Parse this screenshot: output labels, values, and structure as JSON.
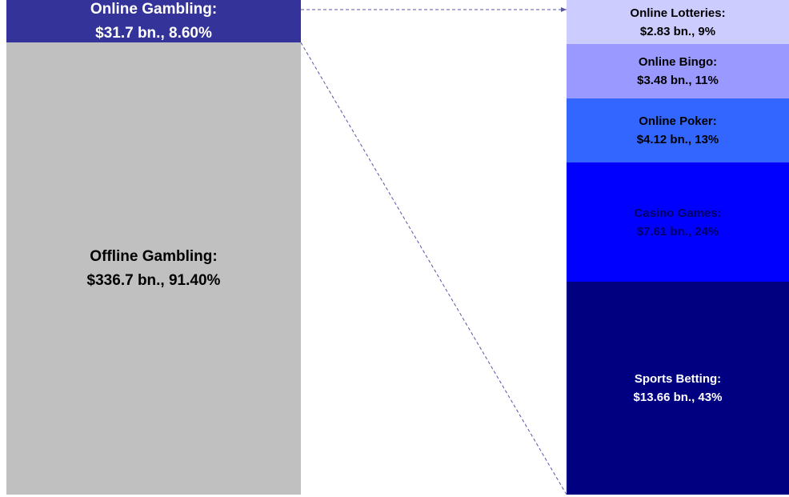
{
  "chart_data": {
    "type": "bar-of-bar",
    "bars": [
      {
        "segments": [
          {
            "name": "Offline Gambling:",
            "value": 336.7,
            "value_label": "$336.7 bn., 91.40%",
            "color": "#c0c0c0",
            "text_color": "#000000"
          },
          {
            "name": "Online Gambling:",
            "value": 31.7,
            "value_label": "$31.7 bn., 8.60%",
            "color": "#333399",
            "text_color": "#ffffff"
          }
        ]
      },
      {
        "segments": [
          {
            "name": "Sports Betting:",
            "value": 13.66,
            "value_label": "$13.66 bn., 43%",
            "color": "#000080",
            "text_color": "#ffffff"
          },
          {
            "name": "Casino Games:",
            "value": 7.61,
            "value_label": "$7.61 bn., 24%",
            "color": "#0000ff",
            "text_color": "#000066"
          },
          {
            "name": "Online Poker:",
            "value": 4.12,
            "value_label": "$4.12 bn., 13%",
            "color": "#3366ff",
            "text_color": "#000000"
          },
          {
            "name": "Online Bingo:",
            "value": 3.48,
            "value_label": "$3.48 bn., 11%",
            "color": "#9999ff",
            "text_color": "#000000"
          },
          {
            "name": "Online Lotteries:",
            "value": 2.83,
            "value_label": "$2.83 bn., 9%",
            "color": "#ccccff",
            "text_color": "#000000"
          }
        ]
      }
    ],
    "connector_color": "#5555aa"
  }
}
